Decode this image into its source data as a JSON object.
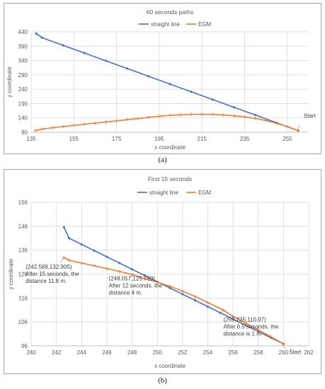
{
  "captions": {
    "a": "(a)",
    "b": "(b)"
  },
  "colors": {
    "series1": "#4472c4",
    "series2": "#ed7d31",
    "grid": "#d9d9d9",
    "axis": "#bfbfbf",
    "text": "#595959"
  },
  "chart_data": [
    {
      "type": "line",
      "title": "60 seconds paths",
      "xlabel": "x coordinate",
      "ylabel": "y coordinate",
      "xlim": [
        135,
        265
      ],
      "ylim": [
        90,
        440
      ],
      "xticks": [
        135,
        155,
        175,
        195,
        215,
        235,
        255
      ],
      "yticks": [
        90,
        140,
        190,
        240,
        290,
        340,
        390,
        440
      ],
      "grid": true,
      "legend": "top",
      "series": [
        {
          "name": "straight line",
          "color": "#4472c4",
          "x": [
            260,
            250,
            240,
            230,
            220,
            210,
            200,
            190,
            180,
            170,
            160,
            150,
            140,
            137.4
          ],
          "y": [
            96,
            123,
            150,
            177,
            204,
            231,
            258,
            285,
            312,
            339,
            366,
            393,
            420,
            434
          ]
        },
        {
          "name": "EGM",
          "color": "#ed7d31",
          "x": [
            260,
            255,
            250,
            245,
            240,
            235,
            230,
            225,
            220,
            215,
            210,
            205,
            200,
            195,
            190,
            185,
            180,
            175,
            170,
            165,
            160,
            155,
            150,
            145,
            140,
            137
          ],
          "y": [
            96,
            110,
            121,
            131,
            138.5,
            143.5,
            147.5,
            150.5,
            152.5,
            153,
            152.5,
            151,
            149,
            146,
            142,
            138,
            134,
            130,
            126,
            122,
            118,
            114,
            110,
            106,
            101,
            96
          ]
        }
      ],
      "annotations": [
        {
          "text": "Start",
          "x": 260,
          "y": 96
        }
      ]
    },
    {
      "type": "line",
      "title": "First 15 seconds",
      "xlabel": "x coordinate",
      "ylabel": "y coordinate",
      "xlim": [
        240,
        262
      ],
      "ylim": [
        96,
        156
      ],
      "xticks": [
        240,
        242,
        244,
        246,
        248,
        250,
        252,
        254,
        256,
        258,
        260,
        262
      ],
      "yticks": [
        96,
        106,
        116,
        126,
        136,
        146,
        156
      ],
      "grid": true,
      "legend": "top",
      "series": [
        {
          "name": "straight line",
          "color": "#4472c4",
          "x": [
            260,
            259,
            258,
            257,
            256,
            255,
            254,
            253,
            252,
            251,
            250,
            249,
            248,
            247,
            246,
            245,
            244,
            243,
            242.6
          ],
          "y": [
            96.8,
            99.4,
            102,
            104.6,
            107.2,
            109.8,
            112.4,
            115,
            117.6,
            120.2,
            122.8,
            125.4,
            128,
            130.6,
            133.2,
            135.8,
            138.4,
            141,
            145.6
          ]
        },
        {
          "name": "EGM",
          "color": "#ed7d31",
          "x": [
            260,
            259,
            258,
            257,
            256,
            255.235,
            254,
            253,
            252,
            251,
            250,
            249,
            248.057,
            247,
            246,
            245,
            244,
            243,
            242.589
          ],
          "y": [
            96.8,
            99.8,
            102.7,
            105.5,
            108.3,
            110.97,
            114.1,
            116.6,
            118.9,
            120.9,
            122.6,
            124.1,
            125.759,
            127.1,
            128.3,
            129.5,
            130.6,
            131.8,
            132.905
          ]
        }
      ],
      "annotations": [
        {
          "lines": [
            "(242.589,132.905)",
            "After 15 seconds, the",
            "distance 11.8 m."
          ],
          "x": 242.589,
          "y": 132.905
        },
        {
          "lines": [
            "(248.057,125.759)",
            "After 12 seconds, the",
            "distance 4 m."
          ],
          "x": 248.057,
          "y": 125.759
        },
        {
          "lines": [
            "(255.235,110.97)",
            "After 6.5 seconds, the",
            "distance is 1 m."
          ],
          "x": 255.235,
          "y": 110.97
        },
        {
          "lines": [
            "Start"
          ],
          "x": 260,
          "y": 96.8
        }
      ]
    }
  ]
}
